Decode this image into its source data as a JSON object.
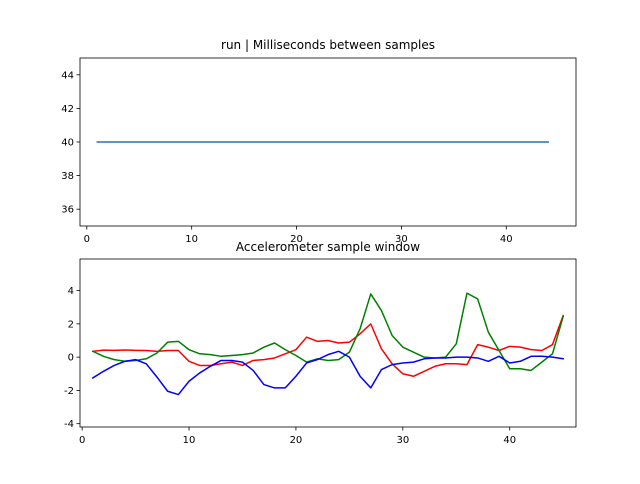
{
  "chart_data": [
    {
      "type": "line",
      "title": "run | Milliseconds between samples",
      "xlabel": "",
      "ylabel": "",
      "xlim": [
        -0.65,
        46.65
      ],
      "ylim": [
        35,
        45
      ],
      "xticks": [
        0,
        10,
        20,
        30,
        40
      ],
      "yticks": [
        36,
        38,
        40,
        42,
        44
      ],
      "grid": false,
      "series": [
        {
          "color": "#1f77b4",
          "x": [
            1,
            44
          ],
          "y": [
            40,
            40
          ]
        }
      ]
    },
    {
      "type": "line",
      "title": "Accelerometer sample window",
      "xlabel": "",
      "ylabel": "",
      "xlim": [
        -0.2,
        46.2
      ],
      "ylim": [
        -4.2,
        5.9
      ],
      "xticks": [
        0,
        10,
        20,
        30,
        40
      ],
      "yticks": [
        -4,
        -2,
        0,
        2,
        4
      ],
      "grid": false,
      "series": [
        {
          "color": "#ff0000",
          "x": [
            1,
            2,
            3,
            4,
            5,
            6,
            7,
            8,
            9,
            10,
            11,
            12,
            13,
            14,
            15,
            16,
            17,
            18,
            19,
            20,
            21,
            22,
            23,
            24,
            25,
            26,
            27,
            28,
            29,
            30,
            31,
            32,
            33,
            34,
            35,
            36,
            37,
            38,
            39,
            40,
            41,
            42,
            43,
            44,
            45
          ],
          "y": [
            0.35,
            0.42,
            0.41,
            0.43,
            0.41,
            0.4,
            0.35,
            0.4,
            0.4,
            -0.25,
            -0.5,
            -0.5,
            -0.4,
            -0.3,
            -0.5,
            -0.2,
            -0.15,
            -0.05,
            0.2,
            0.45,
            1.2,
            0.95,
            1.0,
            0.85,
            0.9,
            1.4,
            2.0,
            0.5,
            -0.4,
            -1.0,
            -1.15,
            -0.85,
            -0.55,
            -0.4,
            -0.4,
            -0.45,
            0.75,
            0.6,
            0.4,
            0.65,
            0.6,
            0.45,
            0.4,
            0.75,
            2.5
          ]
        },
        {
          "color": "#008000",
          "x": [
            1,
            2,
            3,
            4,
            5,
            6,
            7,
            8,
            9,
            10,
            11,
            12,
            13,
            14,
            15,
            16,
            17,
            18,
            19,
            20,
            21,
            22,
            23,
            24,
            25,
            26,
            27,
            28,
            29,
            30,
            31,
            32,
            33,
            34,
            35,
            36,
            37,
            38,
            39,
            40,
            41,
            42,
            43,
            44,
            45
          ],
          "y": [
            0.35,
            0.05,
            -0.15,
            -0.25,
            -0.2,
            -0.1,
            0.25,
            0.9,
            0.95,
            0.45,
            0.2,
            0.15,
            0.05,
            0.1,
            0.15,
            0.25,
            0.6,
            0.85,
            0.45,
            0.1,
            -0.3,
            -0.1,
            -0.2,
            -0.15,
            0.3,
            1.7,
            3.8,
            2.8,
            1.3,
            0.6,
            0.3,
            0.0,
            -0.05,
            0.0,
            0.8,
            3.85,
            3.5,
            1.5,
            0.4,
            -0.7,
            -0.7,
            -0.8,
            -0.3,
            0.2,
            2.45
          ]
        },
        {
          "color": "#0000ff",
          "x": [
            1,
            2,
            3,
            4,
            5,
            6,
            7,
            8,
            9,
            10,
            11,
            12,
            13,
            14,
            15,
            16,
            17,
            18,
            19,
            20,
            21,
            22,
            23,
            24,
            25,
            26,
            27,
            28,
            29,
            30,
            31,
            32,
            33,
            34,
            35,
            36,
            37,
            38,
            39,
            40,
            41,
            42,
            43,
            44,
            45
          ],
          "y": [
            -1.25,
            -0.85,
            -0.5,
            -0.25,
            -0.15,
            -0.4,
            -1.2,
            -2.05,
            -2.25,
            -1.45,
            -0.95,
            -0.55,
            -0.2,
            -0.2,
            -0.3,
            -0.8,
            -1.65,
            -1.85,
            -1.85,
            -1.15,
            -0.35,
            -0.15,
            0.15,
            0.35,
            0.0,
            -1.15,
            -1.85,
            -0.75,
            -0.45,
            -0.35,
            -0.3,
            -0.1,
            -0.05,
            -0.05,
            0.0,
            0.0,
            -0.05,
            -0.25,
            0.05,
            -0.35,
            -0.25,
            0.05,
            0.05,
            0.0,
            -0.1
          ]
        }
      ]
    }
  ]
}
